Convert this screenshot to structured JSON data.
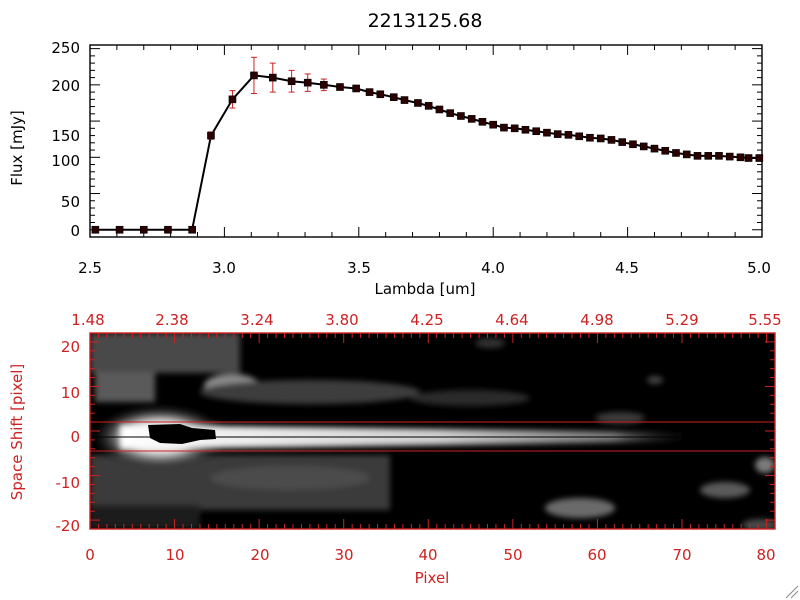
{
  "chart_data": [
    {
      "type": "line",
      "title": "2213125.68",
      "xlabel": "Lambda [um]",
      "ylabel": "Flux [mJy]",
      "xlim": [
        2.5,
        5.0
      ],
      "ylim": [
        -10,
        255
      ],
      "x_ticks": [
        "2.5",
        "3.0",
        "3.5",
        "4.0",
        "4.5",
        "5.0"
      ],
      "y_ticks": [
        "0",
        "50",
        "100",
        "150",
        "200",
        "250"
      ],
      "line_color": "#000000",
      "marker_color": "#2a0000",
      "errorbar_color": "#cc2222",
      "series": [
        {
          "x": [
            2.52,
            2.61,
            2.7,
            2.79,
            2.88,
            2.95,
            3.03,
            3.11,
            3.18,
            3.25,
            3.31,
            3.37,
            3.43,
            3.49,
            3.54,
            3.58,
            3.63,
            3.67,
            3.72,
            3.76,
            3.8,
            3.84,
            3.88,
            3.92,
            3.96,
            4.0,
            4.04,
            4.08,
            4.12,
            4.16,
            4.2,
            4.24,
            4.28,
            4.32,
            4.36,
            4.4,
            4.44,
            4.48,
            4.52,
            4.56,
            4.6,
            4.64,
            4.68,
            4.72,
            4.76,
            4.8,
            4.84,
            4.88,
            4.92,
            4.95,
            4.99
          ],
          "y": [
            0,
            0,
            0,
            0,
            0,
            130,
            180,
            213,
            210,
            205,
            203,
            200,
            197,
            195,
            190,
            187,
            183,
            179,
            175,
            171,
            166,
            161,
            157,
            153,
            149,
            145,
            141,
            140,
            138,
            136,
            134,
            132,
            131,
            129,
            127,
            126,
            124,
            121,
            118,
            115,
            112,
            109,
            106,
            104,
            102,
            102,
            102,
            101,
            100,
            99,
            99
          ],
          "yerr": [
            2,
            2,
            2,
            2,
            2,
            5,
            12,
            25,
            20,
            15,
            12,
            8,
            4,
            3,
            3,
            3,
            3,
            3,
            3,
            3,
            3,
            3,
            3,
            3,
            3,
            3,
            3,
            3,
            3,
            3,
            3,
            3,
            3,
            3,
            3,
            3,
            3,
            3,
            3,
            3,
            3,
            3,
            3,
            3,
            3,
            3,
            3,
            3,
            3,
            3,
            3
          ]
        }
      ]
    },
    {
      "type": "heatmap",
      "xlabel": "Pixel",
      "ylabel": "Space Shift [pixel]",
      "xlim": [
        0,
        81
      ],
      "ylim": [
        -22,
        22
      ],
      "x_ticks": [
        "0",
        "10",
        "20",
        "30",
        "40",
        "50",
        "60",
        "70",
        "80"
      ],
      "y_ticks": [
        "-20",
        "-10",
        "0",
        "10",
        "20"
      ],
      "top_axis_ticks": [
        "1.48",
        "2.38",
        "3.24",
        "3.80",
        "4.25",
        "4.64",
        "4.98",
        "5.29",
        "5.55"
      ],
      "extraction_aperture": [
        -3,
        3
      ],
      "colormap": "grayscale",
      "axis_color": "#cc2222",
      "trace_center": 0
    }
  ]
}
